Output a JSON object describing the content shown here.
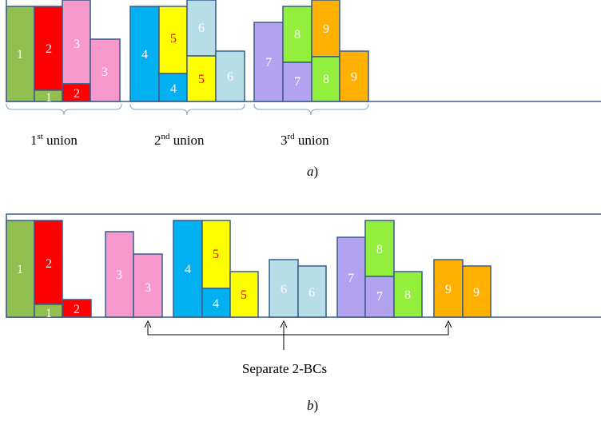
{
  "colors": {
    "1": "#92c050",
    "2": "#ff0000",
    "3": "#f799cd",
    "4": "#00b0f0",
    "5": "#ffff00",
    "6": "#b7dde8",
    "7": "#b3a2f0",
    "8": "#92f03c",
    "9": "#ffb000",
    "stroke": "#385d8a",
    "label_light": "#ffffff",
    "label_red": "#ff0000"
  },
  "panel_a": {
    "unions": [
      {
        "num": "1",
        "sup": "st",
        "word": " union"
      },
      {
        "num": "2",
        "sup": "nd",
        "word": " union"
      },
      {
        "num": "3",
        "sup": "rd",
        "word": " union"
      }
    ],
    "label": "a",
    "paren": ")"
  },
  "panel_b": {
    "annotation": "Separate 2-BCs",
    "label": "b",
    "paren": ")"
  }
}
